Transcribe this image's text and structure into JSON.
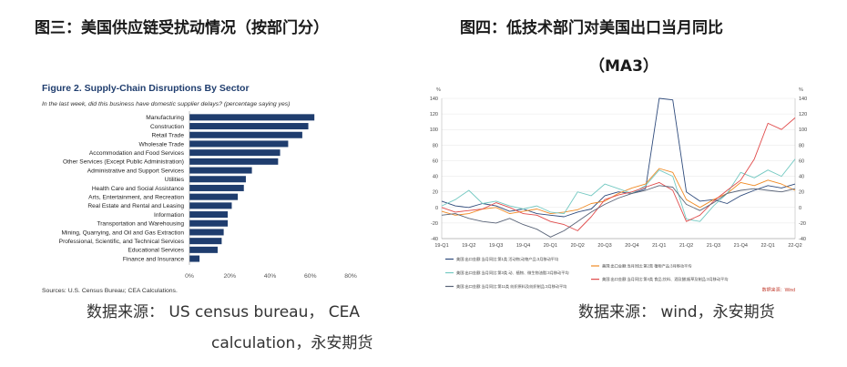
{
  "left_panel": {
    "heading": "图三：美国供应链受扰动情况（按部门分）",
    "source_line1": "数据来源：  US census bureau，  CEA",
    "source_line2": "calculation，永安期货"
  },
  "right_panel": {
    "heading_line1": "图四：低技术部门对美国出口当月同比",
    "heading_line2": "（MA3）",
    "source_line1": "数据来源：  wind，永安期货"
  },
  "chart_data": [
    {
      "type": "bar",
      "orientation": "horizontal",
      "title": "Figure 2. Supply-Chain Disruptions By Sector",
      "subtitle": "In the last week, did this business have domestic supplier delays? (percentage saying yes)",
      "source": "Sources: U.S. Census Bureau; CEA Calculations.",
      "categories": [
        "Manufacturing",
        "Construction",
        "Retail Trade",
        "Wholesale Trade",
        "Accommodation and Food Services",
        "Other Services (Except Public Administration)",
        "Administrative and Support Services",
        "Utilities",
        "Health Care and Social Assistance",
        "Arts, Entertainment, and Recreation",
        "Real Estate and Rental and Leasing",
        "Information",
        "Transportation and Warehousing",
        "Mining, Quarrying, and Oil and Gas Extraction",
        "Professional, Scientific, and Technical Services",
        "Educational Services",
        "Finance and Insurance"
      ],
      "values": [
        62,
        59,
        56,
        49,
        45,
        44,
        31,
        28,
        27,
        24,
        21,
        19,
        19,
        17,
        16,
        14,
        5
      ],
      "xticks": [
        "0%",
        "20%",
        "40%",
        "60%",
        "80%"
      ],
      "xlim": [
        0,
        80
      ],
      "bar_color": "#1f3d6e",
      "grid": false
    },
    {
      "type": "line",
      "unit_left": "%",
      "unit_right": "%",
      "ylim": [
        -40,
        140
      ],
      "yticks": [
        "140",
        "120",
        "100",
        "80",
        "60",
        "40",
        "20",
        "0",
        "-20",
        "-40"
      ],
      "xticks": [
        "19-Q1",
        "19-Q2",
        "19-Q3",
        "19-Q4",
        "20-Q1",
        "20-Q2",
        "20-Q3",
        "20-Q4",
        "21-Q1",
        "21-Q2",
        "21-Q3",
        "21-Q4",
        "22-Q1",
        "22-Q2"
      ],
      "x": [
        0,
        0.5,
        1,
        1.5,
        2,
        2.5,
        3,
        3.5,
        4,
        4.5,
        5,
        5.5,
        6,
        6.5,
        7,
        7.5,
        8,
        8.5,
        9,
        9.5,
        10,
        10.5,
        11,
        11.5,
        12,
        12.5,
        13
      ],
      "series": [
        {
          "name": "美国:出口金额:当月同比:第1类 活动物;动物产品:3月移动平均",
          "color": "#2f4b7c",
          "values": [
            8,
            2,
            0,
            5,
            2,
            -5,
            -2,
            -8,
            -10,
            -12,
            -6,
            -2,
            15,
            20,
            18,
            24,
            140,
            138,
            20,
            8,
            10,
            5,
            15,
            22,
            28,
            25,
            30
          ]
        },
        {
          "name": "美国:出口金额:当月同比:第2类 植物产品:3月移动平均",
          "color": "#f08a24",
          "values": [
            -5,
            -10,
            -8,
            -2,
            0,
            -8,
            -5,
            -2,
            -8,
            -6,
            -3,
            5,
            8,
            18,
            25,
            30,
            50,
            45,
            10,
            0,
            10,
            18,
            32,
            28,
            35,
            30,
            22
          ]
        },
        {
          "name": "美国:出口金额:当月同比:第3类 动、植物、微生物油脂:3月移动平均",
          "color": "#74c9c2",
          "values": [
            2,
            10,
            22,
            5,
            8,
            2,
            -2,
            2,
            -6,
            -8,
            20,
            15,
            30,
            24,
            18,
            28,
            48,
            40,
            -15,
            -18,
            2,
            18,
            45,
            38,
            48,
            40,
            62
          ]
        },
        {
          "name": "美国:出口金额:当月同比:第4类 食品;饮料、酒及醋;烟草及制品:3月移动平均",
          "color": "#e04a4a",
          "values": [
            0,
            -6,
            -4,
            -2,
            6,
            0,
            -8,
            -10,
            -18,
            -22,
            -30,
            -12,
            10,
            16,
            20,
            26,
            32,
            22,
            -18,
            -10,
            8,
            22,
            35,
            62,
            108,
            100,
            115
          ]
        },
        {
          "name": "美国:出口金额:当月同比:第11类 纺织原料及纺织制品:3月移动平均",
          "color": "#5a6478",
          "values": [
            -10,
            -8,
            -14,
            -18,
            -20,
            -14,
            -22,
            -28,
            -38,
            -30,
            -18,
            -6,
            4,
            12,
            18,
            22,
            28,
            26,
            4,
            -4,
            6,
            18,
            22,
            24,
            22,
            20,
            24
          ]
        }
      ],
      "source_note": "数据来源：Wind"
    }
  ]
}
